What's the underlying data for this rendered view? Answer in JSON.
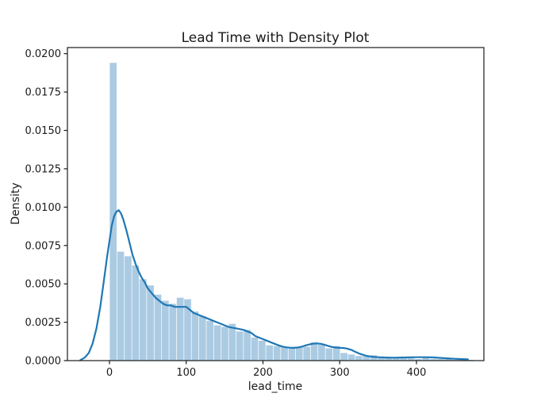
{
  "chart_data": {
    "type": "histogram",
    "overlay": "kde_density_line",
    "title": "Lead Time with Density Plot",
    "xlabel": "lead_time",
    "ylabel": "Density",
    "xlim": [
      -55,
      488
    ],
    "ylim": [
      0,
      0.0205
    ],
    "grid": false,
    "legend": "none",
    "x_ticks": [
      0,
      100,
      200,
      300,
      400
    ],
    "x_tick_labels": [
      "0",
      "100",
      "200",
      "300",
      "400"
    ],
    "y_ticks": [
      0,
      0.0025,
      0.005,
      0.0075,
      0.01,
      0.0125,
      0.015,
      0.0175,
      0.02
    ],
    "y_tick_labels": [
      "0.0000",
      "0.0025",
      "0.0050",
      "0.0075",
      "0.0100",
      "0.0125",
      "0.0150",
      "0.0175",
      "0.0200"
    ],
    "bars": {
      "bin_start": 0,
      "bin_width": 9.7,
      "heights": [
        0.0194,
        0.0071,
        0.0068,
        0.0062,
        0.0053,
        0.0049,
        0.0043,
        0.0039,
        0.0037,
        0.0041,
        0.004,
        0.0032,
        0.0029,
        0.0026,
        0.0023,
        0.0022,
        0.0024,
        0.0019,
        0.002,
        0.0015,
        0.0013,
        0.001,
        0.00095,
        0.0009,
        0.00085,
        0.00085,
        0.0009,
        0.0012,
        0.00105,
        0.0008,
        0.00095,
        0.0005,
        0.0004,
        0.0003,
        0.0003,
        0.00035,
        0.0002,
        0.0002,
        0.00015,
        0.0002,
        0.00015,
        0.0001,
        0.00025,
        0.0001,
        0.0001,
        0.00015,
        5e-05,
        0.0001,
        5e-05
      ]
    },
    "kde_points": [
      [
        -38,
        3e-05
      ],
      [
        -32,
        0.0002
      ],
      [
        -27,
        0.0005
      ],
      [
        -22,
        0.0011
      ],
      [
        -17,
        0.0021
      ],
      [
        -12,
        0.0035
      ],
      [
        -7,
        0.0053
      ],
      [
        -3,
        0.0068
      ],
      [
        0,
        0.0078
      ],
      [
        3,
        0.0088
      ],
      [
        6,
        0.0094
      ],
      [
        9,
        0.0097
      ],
      [
        12,
        0.0098
      ],
      [
        15,
        0.0096
      ],
      [
        18,
        0.0092
      ],
      [
        22,
        0.0085
      ],
      [
        26,
        0.0077
      ],
      [
        30,
        0.0069
      ],
      [
        34,
        0.0063
      ],
      [
        38,
        0.0058
      ],
      [
        42,
        0.0054
      ],
      [
        46,
        0.0051
      ],
      [
        50,
        0.0047
      ],
      [
        55,
        0.0044
      ],
      [
        60,
        0.0041
      ],
      [
        65,
        0.0039
      ],
      [
        70,
        0.0037
      ],
      [
        75,
        0.0036
      ],
      [
        80,
        0.0036
      ],
      [
        85,
        0.0035
      ],
      [
        90,
        0.0035
      ],
      [
        95,
        0.0035
      ],
      [
        100,
        0.0035
      ],
      [
        105,
        0.0033
      ],
      [
        110,
        0.0031
      ],
      [
        115,
        0.003
      ],
      [
        120,
        0.0029
      ],
      [
        125,
        0.0028
      ],
      [
        130,
        0.0027
      ],
      [
        135,
        0.0026
      ],
      [
        140,
        0.0025
      ],
      [
        145,
        0.0024
      ],
      [
        150,
        0.0023
      ],
      [
        155,
        0.0022
      ],
      [
        160,
        0.00215
      ],
      [
        165,
        0.0021
      ],
      [
        170,
        0.00205
      ],
      [
        175,
        0.002
      ],
      [
        180,
        0.0019
      ],
      [
        185,
        0.0018
      ],
      [
        190,
        0.0016
      ],
      [
        195,
        0.0015
      ],
      [
        200,
        0.0014
      ],
      [
        205,
        0.0013
      ],
      [
        210,
        0.0012
      ],
      [
        215,
        0.0011
      ],
      [
        220,
        0.001
      ],
      [
        225,
        0.00092
      ],
      [
        230,
        0.00087
      ],
      [
        235,
        0.00084
      ],
      [
        240,
        0.00083
      ],
      [
        245,
        0.00085
      ],
      [
        250,
        0.0009
      ],
      [
        255,
        0.00098
      ],
      [
        260,
        0.00105
      ],
      [
        265,
        0.0011
      ],
      [
        270,
        0.00112
      ],
      [
        275,
        0.0011
      ],
      [
        280,
        0.00104
      ],
      [
        285,
        0.00096
      ],
      [
        290,
        0.00089
      ],
      [
        295,
        0.00085
      ],
      [
        300,
        0.00083
      ],
      [
        305,
        0.00082
      ],
      [
        310,
        0.00078
      ],
      [
        315,
        0.0007
      ],
      [
        320,
        0.00058
      ],
      [
        325,
        0.00047
      ],
      [
        330,
        0.00038
      ],
      [
        335,
        0.00031
      ],
      [
        340,
        0.00027
      ],
      [
        345,
        0.00024
      ],
      [
        350,
        0.00022
      ],
      [
        360,
        0.0002
      ],
      [
        370,
        0.00019
      ],
      [
        380,
        0.0002
      ],
      [
        390,
        0.00021
      ],
      [
        400,
        0.00022
      ],
      [
        410,
        0.00022
      ],
      [
        420,
        0.00021
      ],
      [
        430,
        0.00018
      ],
      [
        440,
        0.00015
      ],
      [
        450,
        0.00012
      ],
      [
        460,
        0.0001
      ],
      [
        467,
        9e-05
      ]
    ],
    "colors": {
      "bar_fill": "#abcbe3",
      "kde_line": "#1f77b4",
      "axis": "#1a1a1a",
      "text": "#1a1a1a",
      "background": "#ffffff"
    }
  }
}
